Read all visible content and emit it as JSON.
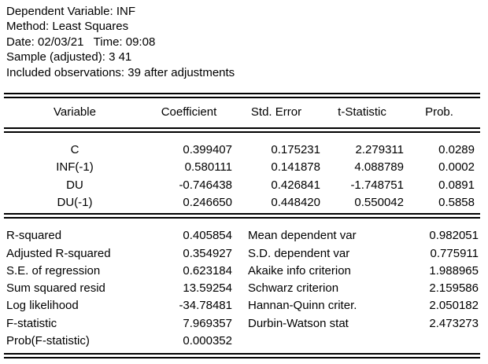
{
  "header": {
    "lines": [
      "Dependent Variable: INF",
      "Method: Least Squares",
      "Date: 02/03/21   Time: 09:08",
      "Sample (adjusted): 3 41",
      "Included observations: 39 after adjustments"
    ]
  },
  "coef_table": {
    "columns": {
      "variable": "Variable",
      "coefficient": "Coefficient",
      "std_error": "Std. Error",
      "t_statistic": "t-Statistic",
      "prob": "Prob."
    },
    "rows": [
      {
        "variable": "C",
        "coefficient": "0.399407",
        "std_error": "0.175231",
        "t_statistic": "2.279311",
        "prob": "0.0289"
      },
      {
        "variable": "INF(-1)",
        "coefficient": "0.580111",
        "std_error": "0.141878",
        "t_statistic": "4.088789",
        "prob": "0.0002"
      },
      {
        "variable": "DU",
        "coefficient": "-0.746438",
        "std_error": "0.426841",
        "t_statistic": "-1.748751",
        "prob": "0.0891"
      },
      {
        "variable": "DU(-1)",
        "coefficient": "0.246650",
        "std_error": "0.448420",
        "t_statistic": "0.550042",
        "prob": "0.5858"
      }
    ]
  },
  "stats": {
    "left": [
      {
        "label": "R-squared",
        "value": "0.405854"
      },
      {
        "label": "Adjusted R-squared",
        "value": "0.354927"
      },
      {
        "label": "S.E. of regression",
        "value": "0.623184"
      },
      {
        "label": "Sum squared resid",
        "value": "13.59254"
      },
      {
        "label": "Log likelihood",
        "value": "-34.78481"
      },
      {
        "label": "F-statistic",
        "value": "7.969357"
      },
      {
        "label": "Prob(F-statistic)",
        "value": "0.000352"
      }
    ],
    "right": [
      {
        "label": "Mean dependent var",
        "value": "0.982051"
      },
      {
        "label": "S.D. dependent var",
        "value": "0.775911"
      },
      {
        "label": "Akaike info criterion",
        "value": "1.988965"
      },
      {
        "label": "Schwarz criterion",
        "value": "2.159586"
      },
      {
        "label": "Hannan-Quinn criter.",
        "value": "2.050182"
      },
      {
        "label": "Durbin-Watson stat",
        "value": "2.473273"
      }
    ]
  },
  "colors": {
    "text": "#000000",
    "background": "#ffffff",
    "rule": "#000000"
  }
}
